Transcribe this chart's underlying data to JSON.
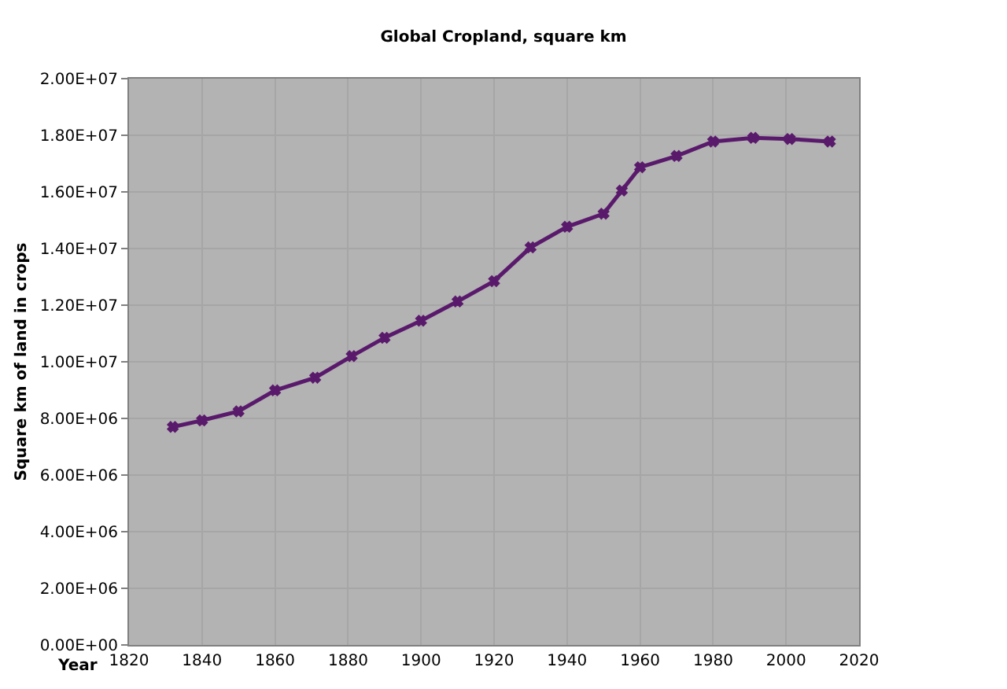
{
  "chart_data": {
    "type": "line",
    "title": "Global Cropland, square km",
    "xlabel": "Year",
    "ylabel": "Square km of land in crops",
    "x": [
      1832,
      1840,
      1850,
      1860,
      1871,
      1881,
      1890,
      1900,
      1910,
      1920,
      1930,
      1940,
      1950,
      1955,
      1960,
      1970,
      1980,
      1991,
      2001,
      2012
    ],
    "series": [
      {
        "color": "#5a1a6c",
        "values": [
          7700000.0,
          7930000.0,
          8250000.0,
          8990000.0,
          9440000.0,
          10200000.0,
          10850000.0,
          11450000.0,
          12130000.0,
          12850000.0,
          14040000.0,
          14770000.0,
          15230000.0,
          16050000.0,
          16870000.0,
          17270000.0,
          17780000.0,
          17910000.0,
          17870000.0,
          17780000.0
        ]
      }
    ],
    "xlim": [
      1820,
      2020
    ],
    "xticks": [
      1820,
      1840,
      1860,
      1880,
      1900,
      1920,
      1940,
      1960,
      1980,
      2000,
      2020
    ],
    "ylim": [
      0,
      20000000.0
    ],
    "yticks": [
      {
        "value": 0,
        "label": "0.00E+00"
      },
      {
        "value": 2000000.0,
        "label": "2.00E+06"
      },
      {
        "value": 4000000.0,
        "label": "4.00E+06"
      },
      {
        "value": 6000000.0,
        "label": "6.00E+06"
      },
      {
        "value": 8000000.0,
        "label": "8.00E+06"
      },
      {
        "value": 10000000.0,
        "label": "1.00E+07"
      },
      {
        "value": 12000000.0,
        "label": "1.20E+07"
      },
      {
        "value": 14000000.0,
        "label": "1.40E+07"
      },
      {
        "value": 16000000.0,
        "label": "1.60E+07"
      },
      {
        "value": 18000000.0,
        "label": "1.80E+07"
      },
      {
        "value": 20000000.0,
        "label": "2.00E+07"
      }
    ],
    "grid": true,
    "legend": false,
    "marker": "cross",
    "line_style": "solid"
  }
}
